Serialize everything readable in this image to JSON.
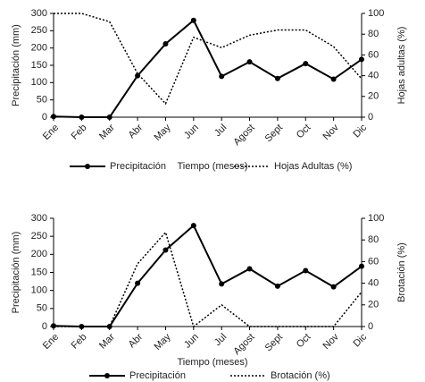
{
  "chart_data": [
    {
      "type": "line",
      "x_label": "Tiempo (meses)",
      "y_label": "Precipitación (mm)",
      "y2_label": "Hojas adultas (%)",
      "categories": [
        "Ene",
        "Feb",
        "Mar",
        "Abr",
        "May",
        "Jun",
        "Jul",
        "Agost",
        "Sept",
        "Oct",
        "Nov",
        "Dic"
      ],
      "series": [
        {
          "name": "Precipitación",
          "color": "#000000",
          "style": "solid",
          "marker": "circle",
          "values": [
            2,
            0,
            0,
            120,
            212,
            280,
            118,
            160,
            112,
            155,
            110,
            167
          ]
        },
        {
          "name": "Hojas Adultas (%)",
          "color": "#000000",
          "style": "dotted",
          "axis": "y2",
          "values": [
            100,
            100,
            92,
            42,
            13,
            77,
            67,
            79,
            84,
            84,
            68,
            37
          ]
        }
      ],
      "ylim": [
        0,
        300
      ],
      "yticks": [
        0,
        50,
        100,
        150,
        200,
        250,
        300
      ],
      "y2lim": [
        0,
        100
      ],
      "y2ticks": [
        0,
        20,
        40,
        60,
        80,
        100
      ]
    },
    {
      "type": "line",
      "x_label": "Tiempo (meses)",
      "y_label": "Precipitación (mm)",
      "y2_label": "Brotación (%)",
      "categories": [
        "Ene",
        "Feb",
        "Mar",
        "Abr",
        "May",
        "Jun",
        "Jul",
        "Agost",
        "Sept",
        "Oct",
        "Nov",
        "Dic"
      ],
      "series": [
        {
          "name": "Precipitación",
          "color": "#000000",
          "style": "solid",
          "marker": "circle",
          "values": [
            2,
            0,
            0,
            120,
            212,
            280,
            118,
            160,
            112,
            155,
            110,
            167
          ]
        },
        {
          "name": "Brotación (%)",
          "color": "#000000",
          "style": "dotted",
          "axis": "y2",
          "values": [
            0,
            0,
            0,
            58,
            87,
            0,
            20,
            0,
            0,
            0,
            0,
            32
          ]
        }
      ],
      "ylim": [
        0,
        300
      ],
      "yticks": [
        0,
        50,
        100,
        150,
        200,
        250,
        300
      ],
      "y2lim": [
        0,
        100
      ],
      "y2ticks": [
        0,
        20,
        40,
        60,
        80,
        100
      ]
    }
  ]
}
